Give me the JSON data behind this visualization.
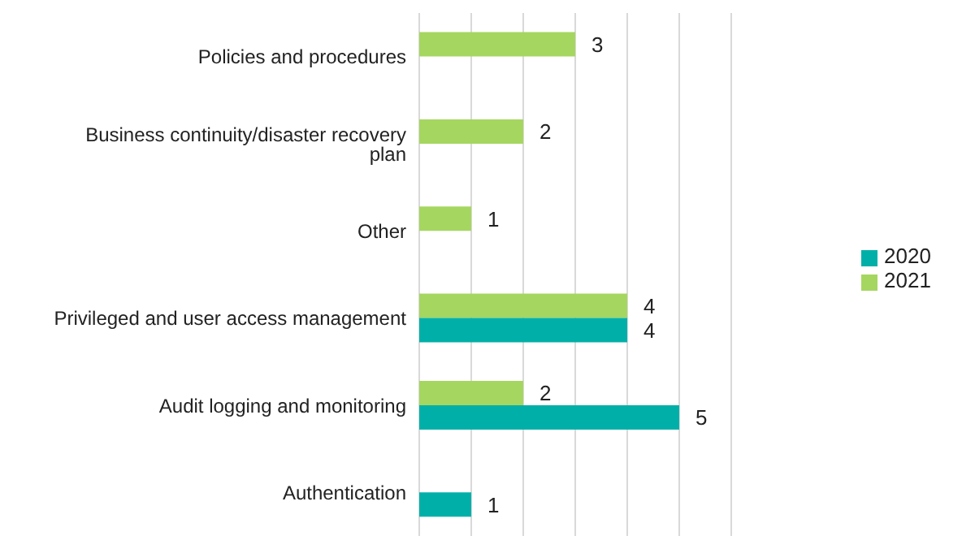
{
  "chart_data": {
    "type": "bar",
    "orientation": "horizontal",
    "categories": [
      "Policies and procedures",
      "Business continuity/disaster recovery plan",
      "Other",
      "Privileged and user access management",
      "Audit logging and monitoring",
      "Authentication"
    ],
    "series": [
      {
        "name": "2021",
        "color": "#a5d65f",
        "values": [
          3,
          2,
          1,
          4,
          2,
          null
        ]
      },
      {
        "name": "2020",
        "color": "#00b0a8",
        "values": [
          null,
          null,
          null,
          4,
          5,
          1
        ]
      }
    ],
    "xlim": [
      0,
      6
    ],
    "xticks": [
      0,
      1,
      2,
      3,
      4,
      5,
      6
    ],
    "tick_labels": "y",
    "grid": "x",
    "legend": "right",
    "data_labels": true
  }
}
